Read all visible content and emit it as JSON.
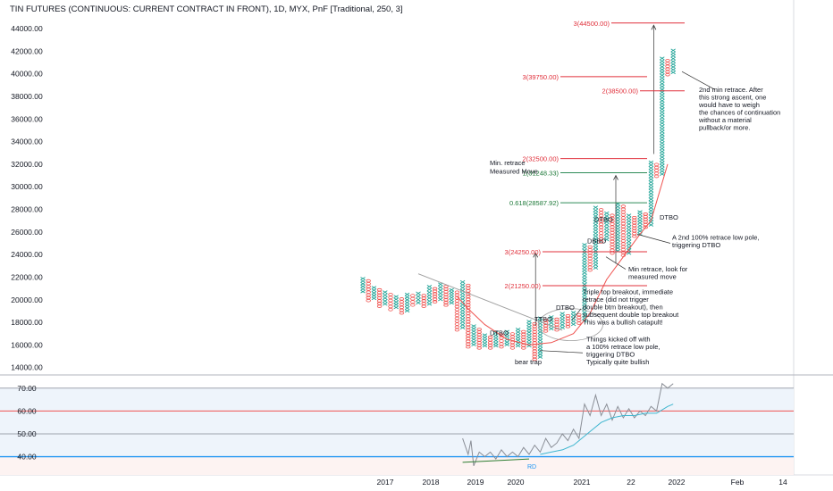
{
  "chart_data": {
    "type": "point_and_figure",
    "title": "TIN FUTURES (CONTINUOUS: CURRENT CONTRACT IN FRONT), 1D, MYX, PnF [Traditional, 250, 3]",
    "x_tick_labels": [
      "2017",
      "2018",
      "2019",
      "2020",
      "2021",
      "22",
      "2022",
      "Feb",
      "14"
    ],
    "y_tick_labels": [
      "44000.00",
      "42000.00",
      "40000.00",
      "38000.00",
      "36000.00",
      "34000.00",
      "32000.00",
      "30000.00",
      "28000.00",
      "26000.00",
      "24000.00",
      "22000.00",
      "20000.00",
      "18000.00",
      "16000.00",
      "14000.00"
    ],
    "ylim": [
      13500,
      44800
    ],
    "box_size": 250,
    "reversal": 3,
    "colors": {
      "x_box": "#26a69a",
      "o_box": "#ef5350",
      "red_level": "#e0303b",
      "green_level": "#2e8b57",
      "avg_line": "#ef5350",
      "trendline": "#9e9e9e"
    },
    "columns": [
      {
        "type": "X",
        "low": 20600,
        "high": 22000,
        "x": 0
      },
      {
        "type": "O",
        "low": 19800,
        "high": 21800,
        "x": 1
      },
      {
        "type": "X",
        "low": 20000,
        "high": 21200,
        "x": 2
      },
      {
        "type": "O",
        "low": 19300,
        "high": 21000,
        "x": 3
      },
      {
        "type": "X",
        "low": 19500,
        "high": 20800,
        "x": 4
      },
      {
        "type": "O",
        "low": 19000,
        "high": 20600,
        "x": 5
      },
      {
        "type": "X",
        "low": 19200,
        "high": 20400,
        "x": 6
      },
      {
        "type": "O",
        "low": 18700,
        "high": 20200,
        "x": 7
      },
      {
        "type": "X",
        "low": 18900,
        "high": 20600,
        "x": 8
      },
      {
        "type": "O",
        "low": 19400,
        "high": 20500,
        "x": 9
      },
      {
        "type": "X",
        "low": 19600,
        "high": 20700,
        "x": 10
      },
      {
        "type": "O",
        "low": 19300,
        "high": 20500,
        "x": 11
      },
      {
        "type": "X",
        "low": 19500,
        "high": 21300,
        "x": 12
      },
      {
        "type": "O",
        "low": 19700,
        "high": 21100,
        "x": 13
      },
      {
        "type": "X",
        "low": 19900,
        "high": 21500,
        "x": 14
      },
      {
        "type": "O",
        "low": 19400,
        "high": 21300,
        "x": 15
      },
      {
        "type": "X",
        "low": 19600,
        "high": 21000,
        "x": 16
      },
      {
        "type": "O",
        "low": 17200,
        "high": 20800,
        "x": 17
      },
      {
        "type": "X",
        "low": 17400,
        "high": 21700,
        "x": 18
      },
      {
        "type": "O",
        "low": 15700,
        "high": 21400,
        "x": 19
      },
      {
        "type": "X",
        "low": 15900,
        "high": 17800,
        "x": 20
      },
      {
        "type": "O",
        "low": 15600,
        "high": 17500,
        "x": 21
      },
      {
        "type": "X",
        "low": 15800,
        "high": 17000,
        "x": 22
      },
      {
        "type": "O",
        "low": 15600,
        "high": 16800,
        "x": 23
      },
      {
        "type": "X",
        "low": 15800,
        "high": 17200,
        "x": 24
      },
      {
        "type": "O",
        "low": 15700,
        "high": 17000,
        "x": 25
      },
      {
        "type": "X",
        "low": 15900,
        "high": 17300,
        "x": 26
      },
      {
        "type": "O",
        "low": 15600,
        "high": 17100,
        "x": 27
      },
      {
        "type": "X",
        "low": 15800,
        "high": 17500,
        "x": 28
      },
      {
        "type": "O",
        "low": 15600,
        "high": 17300,
        "x": 29
      },
      {
        "type": "X",
        "low": 15800,
        "high": 18200,
        "x": 30
      },
      {
        "type": "O",
        "low": 14600,
        "high": 18000,
        "x": 31
      },
      {
        "type": "X",
        "low": 14800,
        "high": 18500,
        "x": 32
      },
      {
        "type": "O",
        "low": 17100,
        "high": 18300,
        "x": 33
      },
      {
        "type": "X",
        "low": 17300,
        "high": 18600,
        "x": 34
      },
      {
        "type": "O",
        "low": 17200,
        "high": 18400,
        "x": 35
      },
      {
        "type": "X",
        "low": 17400,
        "high": 18900,
        "x": 36
      },
      {
        "type": "O",
        "low": 17500,
        "high": 18700,
        "x": 37
      },
      {
        "type": "X",
        "low": 17700,
        "high": 19000,
        "x": 38
      },
      {
        "type": "O",
        "low": 17800,
        "high": 18800,
        "x": 39
      },
      {
        "type": "X",
        "low": 18000,
        "high": 25000,
        "x": 40
      },
      {
        "type": "O",
        "low": 22500,
        "high": 24800,
        "x": 41
      },
      {
        "type": "X",
        "low": 22700,
        "high": 28300,
        "x": 42
      },
      {
        "type": "O",
        "low": 25000,
        "high": 28100,
        "x": 43
      },
      {
        "type": "X",
        "low": 25200,
        "high": 27800,
        "x": 44
      },
      {
        "type": "O",
        "low": 24000,
        "high": 27600,
        "x": 45
      },
      {
        "type": "X",
        "low": 24200,
        "high": 28600,
        "x": 46
      },
      {
        "type": "O",
        "low": 23800,
        "high": 28400,
        "x": 47
      },
      {
        "type": "X",
        "low": 24000,
        "high": 27600,
        "x": 48
      },
      {
        "type": "O",
        "low": 25500,
        "high": 27400,
        "x": 49
      },
      {
        "type": "X",
        "low": 25700,
        "high": 27900,
        "x": 50
      },
      {
        "type": "O",
        "low": 26300,
        "high": 27700,
        "x": 51
      },
      {
        "type": "X",
        "low": 26500,
        "high": 32300,
        "x": 52
      },
      {
        "type": "O",
        "low": 30800,
        "high": 32100,
        "x": 53
      },
      {
        "type": "X",
        "low": 31000,
        "high": 41500,
        "x": 54
      },
      {
        "type": "O",
        "low": 39800,
        "high": 41300,
        "x": 55
      },
      {
        "type": "X",
        "low": 40000,
        "high": 42200,
        "x": 56
      }
    ],
    "levels": [
      {
        "label": "3(44500.00)",
        "value": 44500,
        "color": "red",
        "x_from": 684,
        "x_to": 766
      },
      {
        "label": "3(39750.00)",
        "value": 39750,
        "color": "red",
        "x_from": 627,
        "x_to": 724
      },
      {
        "label": "2(38500.00)",
        "value": 38500,
        "color": "red",
        "x_from": 716,
        "x_to": 766
      },
      {
        "label": "2(32500.00)",
        "value": 32500,
        "color": "red",
        "x_from": 627,
        "x_to": 724
      },
      {
        "label": "1(31248.33)",
        "value": 31248.33,
        "color": "green",
        "x_from": 627,
        "x_to": 724
      },
      {
        "label": "0.618(28587.92)",
        "value": 28587.92,
        "color": "green",
        "x_from": 627,
        "x_to": 724
      },
      {
        "label": "3(24250.00)",
        "value": 24250,
        "color": "red",
        "x_from": 607,
        "x_to": 724
      },
      {
        "label": "2(21250.00)",
        "value": 21250,
        "color": "red",
        "x_from": 607,
        "x_to": 724
      }
    ],
    "annotations": [
      {
        "text": "Min. retrace",
        "near": "31900"
      },
      {
        "text": "Measured Move",
        "near": "31100"
      },
      {
        "text": "DTBO",
        "near": "27400"
      },
      {
        "text": "DTBO",
        "near": "26700"
      },
      {
        "text": "DBBO",
        "near": "25100"
      },
      {
        "text": "DTBO",
        "near": "19000"
      },
      {
        "text": "TTBO",
        "near": "18100"
      },
      {
        "text": "DTBO",
        "near": "16700"
      },
      {
        "text": "bear trap",
        "near": "14300"
      }
    ],
    "notes": [
      {
        "lines": [
          "2nd min retrace. After",
          "this strong ascent, one",
          "would have to weigh",
          "the chances of continuation",
          "without a material",
          "pullback/or more."
        ]
      },
      {
        "lines": [
          "A 2nd 100% retrace low pole,",
          "triggering DTBO"
        ]
      },
      {
        "lines": [
          "Min retrace, look for",
          "measured move"
        ]
      },
      {
        "lines": [
          "Triple top breakout, immediate",
          "retrace (did not trigger",
          "double btm breakout), then",
          "subsequent double top breakout",
          "This was a bullish catapult!"
        ]
      },
      {
        "lines": [
          "Things kicked off with",
          "a 100% retrace low pole,",
          "triggering DTBO",
          "Typically quite bullish"
        ]
      }
    ],
    "moving_average": [
      [
        17,
        20300
      ],
      [
        19,
        19200
      ],
      [
        22,
        17800
      ],
      [
        26,
        16500
      ],
      [
        30,
        16000
      ],
      [
        34,
        16200
      ],
      [
        38,
        17000
      ],
      [
        41,
        18800
      ],
      [
        44,
        21800
      ],
      [
        47,
        23800
      ],
      [
        50,
        25800
      ],
      [
        52,
        27000
      ],
      [
        55,
        32000
      ]
    ],
    "trendline": [
      [
        10,
        22300
      ],
      [
        36,
        17300
      ]
    ]
  },
  "rsi": {
    "y_tick_labels": [
      "70.00",
      "60.00",
      "50.00",
      "40.00"
    ],
    "ylim": [
      32,
      75
    ],
    "label": "RD",
    "levels": [
      70,
      60,
      50,
      40
    ],
    "rsi_values": [
      [
        18,
        48
      ],
      [
        19,
        41
      ],
      [
        19.5,
        47
      ],
      [
        20,
        36
      ],
      [
        21,
        42
      ],
      [
        22,
        40
      ],
      [
        23,
        42
      ],
      [
        24,
        39
      ],
      [
        25,
        43
      ],
      [
        26,
        40
      ],
      [
        27,
        42
      ],
      [
        28,
        40
      ],
      [
        29,
        44
      ],
      [
        30,
        41
      ],
      [
        31,
        45
      ],
      [
        32,
        42
      ],
      [
        33,
        48
      ],
      [
        34,
        44
      ],
      [
        35,
        46
      ],
      [
        36,
        50
      ],
      [
        37,
        47
      ],
      [
        38,
        52
      ],
      [
        39,
        48
      ],
      [
        40,
        63
      ],
      [
        41,
        58
      ],
      [
        42,
        67
      ],
      [
        43,
        58
      ],
      [
        44,
        63
      ],
      [
        45,
        56
      ],
      [
        46,
        62
      ],
      [
        47,
        57
      ],
      [
        48,
        61
      ],
      [
        49,
        57
      ],
      [
        50,
        60
      ],
      [
        51,
        58
      ],
      [
        52,
        62
      ],
      [
        53,
        60
      ],
      [
        54,
        72
      ],
      [
        55,
        70
      ],
      [
        56,
        72
      ]
    ],
    "rsi_ma": [
      [
        32,
        41
      ],
      [
        34,
        42
      ],
      [
        36,
        43
      ],
      [
        38,
        45
      ],
      [
        39,
        47
      ],
      [
        41,
        51
      ],
      [
        43,
        55
      ],
      [
        45,
        57
      ],
      [
        47,
        58
      ],
      [
        49,
        58
      ],
      [
        51,
        59
      ],
      [
        53,
        59
      ],
      [
        55,
        62
      ],
      [
        56,
        63
      ]
    ],
    "divergence": [
      [
        18,
        37.5
      ],
      [
        30,
        39
      ]
    ]
  }
}
